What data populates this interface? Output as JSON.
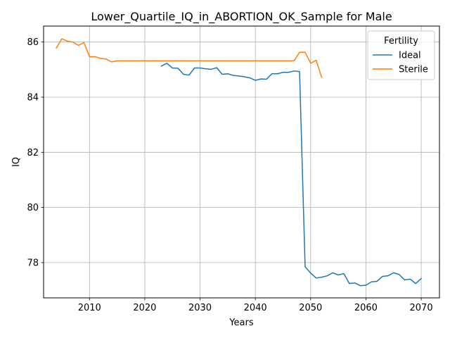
{
  "chart_data": {
    "type": "line",
    "title": "Lower_Quartile_IQ_in_ABORTION_OK_Sample for Male",
    "xlabel": "Years",
    "ylabel": "IQ",
    "xlim": [
      2001.7,
      2073.3
    ],
    "ylim": [
      76.72,
      86.58
    ],
    "x_ticks": [
      2010,
      2020,
      2030,
      2040,
      2050,
      2060,
      2070
    ],
    "y_ticks": [
      78,
      80,
      82,
      84,
      86
    ],
    "grid": true,
    "legend": {
      "title": "Fertility",
      "placement": "top-right"
    },
    "series": [
      {
        "name": "Ideal",
        "color": "#1f77b4",
        "x": [
          2023,
          2024,
          2025,
          2026,
          2027,
          2028,
          2029,
          2030,
          2031,
          2032,
          2033,
          2034,
          2035,
          2036,
          2037,
          2038,
          2039,
          2040,
          2041,
          2042,
          2043,
          2044,
          2045,
          2046,
          2047,
          2048,
          2049,
          2050,
          2051,
          2052,
          2053,
          2054,
          2055,
          2056,
          2057,
          2058,
          2059,
          2060,
          2061,
          2062,
          2063,
          2064,
          2065,
          2066,
          2067,
          2068,
          2069,
          2070
        ],
        "values": [
          85.13,
          85.23,
          85.06,
          85.05,
          84.83,
          84.8,
          85.06,
          85.06,
          85.03,
          85.01,
          85.07,
          84.83,
          84.85,
          84.79,
          84.77,
          84.74,
          84.7,
          84.61,
          84.66,
          84.65,
          84.85,
          84.85,
          84.9,
          84.9,
          84.95,
          84.93,
          77.85,
          77.62,
          77.44,
          77.47,
          77.52,
          77.63,
          77.55,
          77.6,
          77.24,
          77.26,
          77.16,
          77.18,
          77.3,
          77.32,
          77.5,
          77.52,
          77.63,
          77.57,
          77.37,
          77.4,
          77.24,
          77.42
        ]
      },
      {
        "name": "Sterile",
        "color": "#ff7f0e",
        "x": [
          2004,
          2005,
          2006,
          2007,
          2008,
          2009,
          2010,
          2011,
          2012,
          2013,
          2014,
          2015,
          2016,
          2017,
          2018,
          2019,
          2020,
          2021,
          2022,
          2023,
          2024,
          2025,
          2026,
          2027,
          2028,
          2029,
          2030,
          2031,
          2032,
          2033,
          2034,
          2035,
          2036,
          2037,
          2038,
          2039,
          2040,
          2041,
          2042,
          2043,
          2044,
          2045,
          2046,
          2047,
          2048,
          2049,
          2050,
          2051,
          2052
        ],
        "values": [
          85.78,
          86.12,
          86.03,
          86.0,
          85.88,
          85.98,
          85.47,
          85.47,
          85.41,
          85.38,
          85.28,
          85.32,
          85.32,
          85.32,
          85.32,
          85.32,
          85.32,
          85.32,
          85.32,
          85.32,
          85.32,
          85.32,
          85.32,
          85.32,
          85.32,
          85.32,
          85.32,
          85.32,
          85.32,
          85.32,
          85.32,
          85.32,
          85.32,
          85.32,
          85.32,
          85.32,
          85.32,
          85.32,
          85.32,
          85.32,
          85.32,
          85.32,
          85.32,
          85.32,
          85.63,
          85.63,
          85.23,
          85.34,
          84.72
        ]
      }
    ]
  }
}
